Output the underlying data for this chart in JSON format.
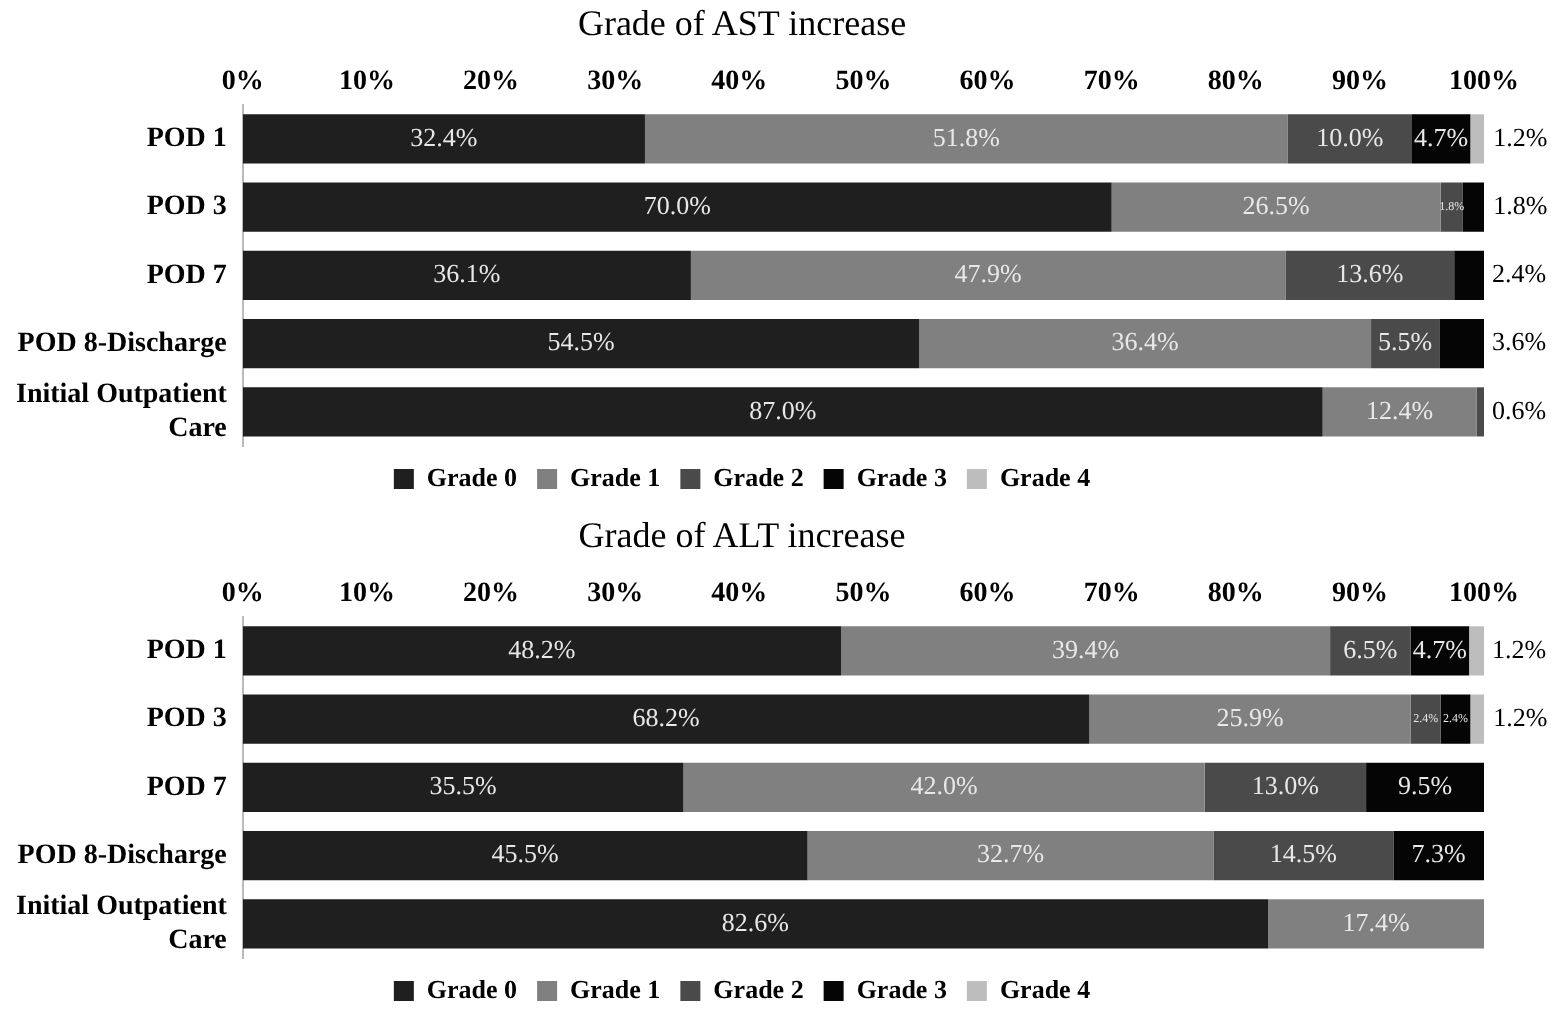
{
  "chart_data": [
    {
      "type": "bar",
      "title": "Grade of AST increase",
      "orientation": "horizontal",
      "stacked": true,
      "legend": "bottom",
      "grid": false,
      "xlim": [
        0,
        100
      ],
      "xticks": [
        {
          "value": 0,
          "label": "0%"
        },
        {
          "value": 10,
          "label": "10%"
        },
        {
          "value": 20,
          "label": "20%"
        },
        {
          "value": 30,
          "label": "30%"
        },
        {
          "value": 40,
          "label": "40%"
        },
        {
          "value": 50,
          "label": "50%"
        },
        {
          "value": 60,
          "label": "60%"
        },
        {
          "value": 70,
          "label": "70%"
        },
        {
          "value": 80,
          "label": "80%"
        },
        {
          "value": 90,
          "label": "90%"
        },
        {
          "value": 100,
          "label": "100%"
        }
      ],
      "categories": [
        "POD 1",
        "POD 3",
        "POD 7",
        "POD 8-Discharge",
        "Initial Outpatient Care"
      ],
      "series": [
        {
          "name": "Grade 0",
          "color": "#1f1f1f",
          "values": [
            32.4,
            70.0,
            36.1,
            54.5,
            87.0
          ],
          "value_labels": [
            "32.4%",
            "70.0%",
            "36.1%",
            "54.5%",
            "87.0%"
          ]
        },
        {
          "name": "Grade 1",
          "color": "#808080",
          "values": [
            51.8,
            26.5,
            47.9,
            36.4,
            12.4
          ],
          "value_labels": [
            "51.8%",
            "26.5%",
            "47.9%",
            "36.4%",
            "12.4%"
          ]
        },
        {
          "name": "Grade 2",
          "color": "#4a4a4a",
          "values": [
            10.0,
            1.8,
            13.6,
            5.5,
            0.6
          ],
          "value_labels": [
            "10.0%",
            "1.8%",
            "13.6%",
            "5.5%",
            "0.6%"
          ]
        },
        {
          "name": "Grade 3",
          "color": "#050505",
          "values": [
            4.7,
            1.8,
            2.4,
            3.6,
            0
          ],
          "value_labels": [
            "4.7%",
            "1.8%",
            "2.4%",
            "3.6%",
            null
          ]
        },
        {
          "name": "Grade 4",
          "color": "#bdbdbd",
          "values": [
            1.2,
            0,
            0,
            0,
            0
          ],
          "value_labels": [
            "1.2%",
            null,
            null,
            null,
            null
          ]
        }
      ]
    },
    {
      "type": "bar",
      "title": "Grade of ALT increase",
      "orientation": "horizontal",
      "stacked": true,
      "legend": "bottom",
      "grid": false,
      "xlim": [
        0,
        100
      ],
      "xticks": [
        {
          "value": 0,
          "label": "0%"
        },
        {
          "value": 10,
          "label": "10%"
        },
        {
          "value": 20,
          "label": "20%"
        },
        {
          "value": 30,
          "label": "30%"
        },
        {
          "value": 40,
          "label": "40%"
        },
        {
          "value": 50,
          "label": "50%"
        },
        {
          "value": 60,
          "label": "60%"
        },
        {
          "value": 70,
          "label": "70%"
        },
        {
          "value": 80,
          "label": "80%"
        },
        {
          "value": 90,
          "label": "90%"
        },
        {
          "value": 100,
          "label": "100%"
        }
      ],
      "categories": [
        "POD 1",
        "POD 3",
        "POD 7",
        "POD 8-Discharge",
        "Initial Outpatient Care"
      ],
      "series": [
        {
          "name": "Grade 0",
          "color": "#1f1f1f",
          "values": [
            48.2,
            68.2,
            35.5,
            45.5,
            82.6
          ],
          "value_labels": [
            "48.2%",
            "68.2%",
            "35.5%",
            "45.5%",
            "82.6%"
          ]
        },
        {
          "name": "Grade 1",
          "color": "#808080",
          "values": [
            39.4,
            25.9,
            42.0,
            32.7,
            17.4
          ],
          "value_labels": [
            "39.4%",
            "25.9%",
            "42.0%",
            "32.7%",
            "17.4%"
          ]
        },
        {
          "name": "Grade 2",
          "color": "#4a4a4a",
          "values": [
            6.5,
            2.4,
            13.0,
            14.5,
            0
          ],
          "value_labels": [
            "6.5%",
            "2.4%",
            "13.0%",
            "14.5%",
            null
          ]
        },
        {
          "name": "Grade 3",
          "color": "#050505",
          "values": [
            4.7,
            2.4,
            9.5,
            7.3,
            0
          ],
          "value_labels": [
            "4.7%",
            "2.4%",
            "9.5%",
            "7.3%",
            null
          ]
        },
        {
          "name": "Grade 4",
          "color": "#bdbdbd",
          "values": [
            1.2,
            1.2,
            0,
            0,
            0
          ],
          "value_labels": [
            "1.2%",
            "1.2%",
            null,
            null,
            null
          ]
        }
      ]
    }
  ]
}
